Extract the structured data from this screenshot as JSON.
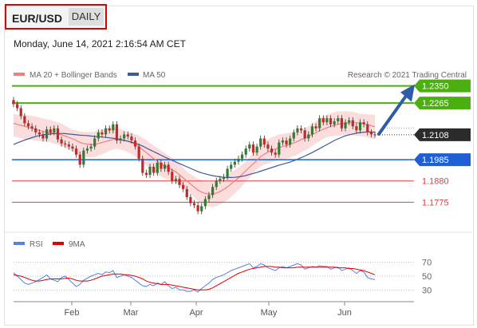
{
  "header": {
    "symbol": "EUR/USD",
    "period": "DAILY",
    "datetime": "Monday, June 14, 2021 2:16:54 AM CET"
  },
  "legend": {
    "ma20": "MA 20 + Bollinger Bands",
    "ma50": "MA 50",
    "credit": "Research © 2021 Trading Central",
    "rsi": "RSI",
    "ma9": "9MA"
  },
  "colors": {
    "resistance": "#4caf10",
    "support": "#1f5fd6",
    "level_red": "#e04040",
    "bollinger": "#fbd4d4",
    "ma20": "#f08080",
    "ma50": "#3a5b9c",
    "up_candle": "#2e7d32",
    "down_candle": "#c62828",
    "arrow": "#2e5ca6",
    "rsi": "#5b7fe0",
    "ma9": "#e00000"
  },
  "chart_data": [
    {
      "type": "candlestick",
      "title": "EUR/USD DAILY",
      "x_ticks": [
        "Feb",
        "Mar",
        "Apr",
        "May",
        "Jun"
      ],
      "last_price": 1.2108,
      "levels": [
        {
          "value": 1.235,
          "label": "1.2350",
          "kind": "resistance"
        },
        {
          "value": 1.2265,
          "label": "1.2265",
          "kind": "resistance"
        },
        {
          "value": 1.1985,
          "label": "1.1985",
          "kind": "support"
        },
        {
          "value": 1.188,
          "label": "1.1880",
          "kind": "minor"
        },
        {
          "value": 1.1775,
          "label": "1.1775",
          "kind": "minor"
        }
      ],
      "ylim": [
        1.165,
        1.238
      ],
      "close_series": [
        1.226,
        1.224,
        1.22,
        1.2165,
        1.215,
        1.214,
        1.212,
        1.211,
        1.209,
        1.2135,
        1.212,
        1.214,
        1.2085,
        1.2065,
        1.206,
        1.205,
        1.204,
        1.201,
        1.196,
        1.203,
        1.204,
        1.205,
        1.209,
        1.212,
        1.211,
        1.214,
        1.213,
        1.216,
        1.208,
        1.209,
        1.211,
        1.21,
        1.208,
        1.205,
        1.199,
        1.192,
        1.191,
        1.195,
        1.192,
        1.197,
        1.194,
        1.196,
        1.1925,
        1.188,
        1.189,
        1.186,
        1.184,
        1.18,
        1.177,
        1.176,
        1.173,
        1.1755,
        1.179,
        1.181,
        1.185,
        1.188,
        1.189,
        1.19,
        1.194,
        1.196,
        1.1975,
        1.199,
        1.201,
        1.204,
        1.206,
        1.202,
        1.205,
        1.209,
        1.206,
        1.204,
        1.202,
        1.201,
        1.207,
        1.208,
        1.206,
        1.209,
        1.212,
        1.214,
        1.213,
        1.209,
        1.211,
        1.215,
        1.214,
        1.219,
        1.217,
        1.219,
        1.216,
        1.2175,
        1.219,
        1.214,
        1.217,
        1.218,
        1.215,
        1.213,
        1.217,
        1.216,
        1.212,
        1.211,
        1.2108
      ],
      "ma20": [
        1.2165,
        1.216,
        1.2155,
        1.215,
        1.2145,
        1.214,
        1.2135,
        1.213,
        1.2125,
        1.212,
        1.2118,
        1.2115,
        1.2112,
        1.2108,
        1.2102,
        1.2095,
        1.2088,
        1.208,
        1.207,
        1.2065,
        1.2062,
        1.206,
        1.206,
        1.2065,
        1.207,
        1.2075,
        1.208,
        1.2085,
        1.2085,
        1.2082,
        1.208,
        1.2075,
        1.207,
        1.206,
        1.205,
        1.2035,
        1.202,
        1.2005,
        1.199,
        1.1978,
        1.1965,
        1.1955,
        1.1945,
        1.1935,
        1.1925,
        1.191,
        1.1895,
        1.188,
        1.1865,
        1.185,
        1.1835,
        1.1825,
        1.1818,
        1.1815,
        1.1815,
        1.182,
        1.1828,
        1.1838,
        1.185,
        1.1865,
        1.188,
        1.1895,
        1.1912,
        1.193,
        1.1948,
        1.1965,
        1.1982,
        1.2,
        1.2012,
        1.2022,
        1.203,
        1.2038,
        1.2045,
        1.205,
        1.2055,
        1.206,
        1.2068,
        1.2075,
        1.2085,
        1.2092,
        1.21,
        1.211,
        1.2118,
        1.2128,
        1.2135,
        1.2143,
        1.215,
        1.2155,
        1.216,
        1.2162,
        1.2165,
        1.2167,
        1.2168,
        1.2168,
        1.2166,
        1.2163,
        1.2158,
        1.2153,
        1.2148
      ],
      "ma50": [
        1.206,
        1.2068,
        1.2075,
        1.2082,
        1.2088,
        1.2094,
        1.21,
        1.2104,
        1.2108,
        1.211,
        1.2112,
        1.2114,
        1.2115,
        1.2115,
        1.2114,
        1.2112,
        1.211,
        1.2108,
        1.2106,
        1.2105,
        1.2104,
        1.2102,
        1.21,
        1.2099,
        1.2097,
        1.2095,
        1.2093,
        1.2091,
        1.2088,
        1.2085,
        1.2081,
        1.2077,
        1.2072,
        1.2066,
        1.206,
        1.2052,
        1.2043,
        1.2034,
        1.2025,
        1.2016,
        1.2007,
        1.1998,
        1.199,
        1.1982,
        1.1974,
        1.1966,
        1.1958,
        1.195,
        1.1942,
        1.1934,
        1.1926,
        1.192,
        1.1915,
        1.191,
        1.1906,
        1.1903,
        1.19,
        1.1898,
        1.1897,
        1.1897,
        1.1898,
        1.19,
        1.1903,
        1.1907,
        1.1912,
        1.1917,
        1.1922,
        1.1928,
        1.1934,
        1.194,
        1.1946,
        1.1952,
        1.1958,
        1.1963,
        1.1968,
        1.1973,
        1.198,
        1.1987,
        1.1995,
        1.2003,
        1.2012,
        1.202,
        1.203,
        1.204,
        1.205,
        1.206,
        1.207,
        1.208,
        1.2088,
        1.2096,
        1.2103,
        1.2108,
        1.2112,
        1.2116,
        1.2119,
        1.2121,
        1.2122,
        1.2122,
        1.2121
      ],
      "forecast_arrow": {
        "from": 1.2108,
        "to": 1.235
      }
    },
    {
      "type": "line",
      "title": "RSI",
      "y_ticks": [
        70,
        50,
        30
      ],
      "ylim": [
        20,
        80
      ],
      "series": [
        {
          "name": "RSI",
          "values": [
            55,
            50,
            45,
            40,
            38,
            40,
            42,
            45,
            48,
            52,
            46,
            44,
            42,
            48,
            50,
            45,
            40,
            35,
            38,
            44,
            47,
            50,
            52,
            54,
            52,
            56,
            55,
            58,
            48,
            50,
            52,
            50,
            48,
            44,
            40,
            36,
            35,
            38,
            36,
            40,
            38,
            42,
            36,
            32,
            34,
            30,
            30,
            28,
            28,
            30,
            27,
            32,
            36,
            40,
            45,
            48,
            50,
            52,
            55,
            58,
            60,
            62,
            64,
            66,
            68,
            62,
            64,
            68,
            66,
            62,
            60,
            58,
            62,
            64,
            62,
            64,
            66,
            68,
            66,
            60,
            62,
            64,
            63,
            65,
            64,
            64,
            60,
            62,
            63,
            58,
            60,
            62,
            58,
            54,
            58,
            56,
            48,
            46,
            45
          ]
        },
        {
          "name": "9MA",
          "values": [
            52,
            51,
            50,
            48,
            46,
            44,
            43,
            43,
            44,
            45,
            46,
            46,
            46,
            46,
            47,
            47,
            46,
            44,
            43,
            43,
            43,
            44,
            46,
            48,
            50,
            51,
            52,
            53,
            53,
            53,
            52,
            52,
            51,
            50,
            48,
            46,
            43,
            41,
            40,
            39,
            38,
            38,
            38,
            37,
            36,
            35,
            34,
            33,
            32,
            31,
            30,
            30,
            30,
            31,
            33,
            36,
            39,
            42,
            45,
            48,
            51,
            54,
            56,
            58,
            60,
            61,
            62,
            63,
            64,
            64,
            64,
            63,
            63,
            62,
            62,
            62,
            62,
            63,
            63,
            63,
            63,
            63,
            63,
            63,
            63,
            63,
            63,
            63,
            62,
            62,
            62,
            61,
            61,
            60,
            59,
            58,
            56,
            54,
            52
          ]
        }
      ]
    }
  ]
}
